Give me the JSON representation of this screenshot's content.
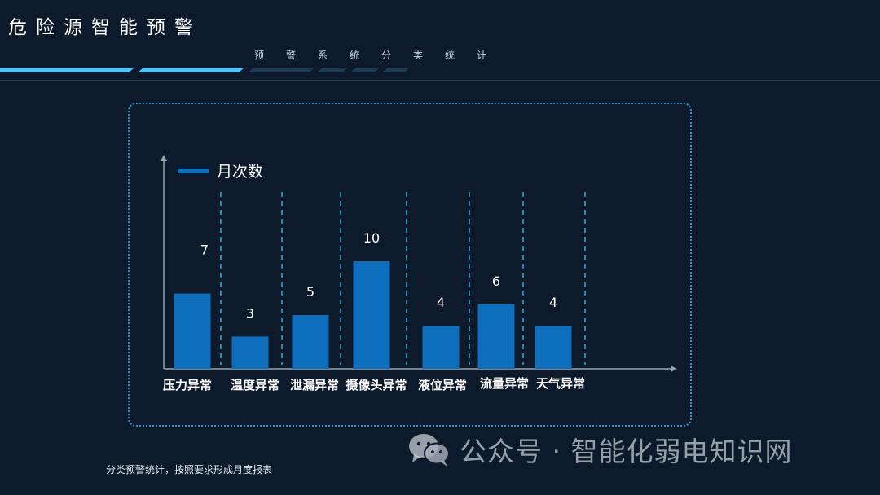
{
  "header": {
    "title": "危险源智能预警",
    "subtitle": "预警系统分类统计"
  },
  "chart_data": {
    "type": "bar",
    "categories": [
      "压力异常",
      "温度异常",
      "泄漏异常",
      "摄像头异常",
      "液位异常",
      "流量异常",
      "天气异常"
    ],
    "series": [
      {
        "name": "月次数",
        "values": [
          7,
          3,
          5,
          10,
          4,
          6,
          4
        ],
        "data_labels": [
          "7",
          "3",
          "5",
          "10",
          "4",
          "6",
          "4"
        ]
      }
    ],
    "ylim": [
      0,
      14
    ],
    "legend_position": "top-left",
    "grid": "dashed vertical separators",
    "colors": {
      "bar": "#0d6ebd",
      "separator": "#3aaed8",
      "axis": "#9aa3ad"
    }
  },
  "footer": {
    "note": "分类预警统计，按照要求形成月度报表"
  },
  "watermark": {
    "text": "公众号 · 智能化弱电知识网",
    "icon": "wechat-icon"
  },
  "colors": {
    "background": "#0c1a2b",
    "accent": "#4fc3f7",
    "frame": "#2f95c7"
  }
}
